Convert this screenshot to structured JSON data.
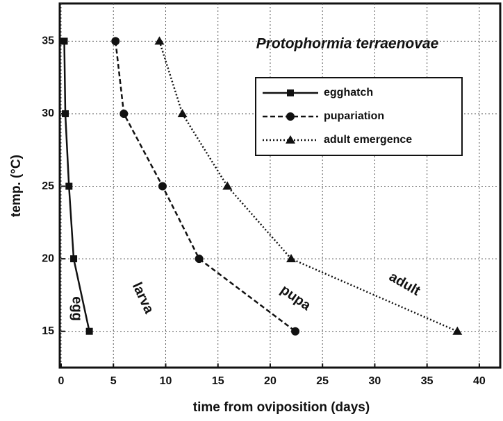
{
  "chart_data": {
    "type": "line",
    "title": "Protophormia terraenovae",
    "x_label": "time from oviposition (days)",
    "y_label": "temp. (°C)",
    "xlim": [
      0,
      42
    ],
    "ylim": [
      12.5,
      37.6
    ],
    "xticks": [
      0,
      5,
      10,
      15,
      20,
      25,
      30,
      35,
      40
    ],
    "yticks": [
      15,
      20,
      25,
      30,
      35
    ],
    "grid": true,
    "legend": "upper right",
    "series": [
      {
        "name": "egghatch",
        "color": "#111111",
        "style": "solid",
        "marker": "square",
        "x": [
          0.3,
          0.4,
          0.75,
          1.2,
          2.7
        ],
        "values": [
          35,
          30,
          25,
          20,
          15
        ]
      },
      {
        "name": "pupariation",
        "color": "#111111",
        "style": "dashed",
        "marker": "circle",
        "x": [
          5.2,
          6,
          9.7,
          13.2,
          22.4
        ],
        "values": [
          35,
          30,
          25,
          20,
          15
        ]
      },
      {
        "name": "adult emergence",
        "color": "#111111",
        "style": "dotted",
        "marker": "triangle",
        "x": [
          9.4,
          11.6,
          15.9,
          22,
          37.9
        ],
        "values": [
          35,
          30,
          25,
          20,
          15
        ]
      }
    ],
    "annotations": [
      "egg",
      "larva",
      "pupa",
      "adult"
    ]
  }
}
